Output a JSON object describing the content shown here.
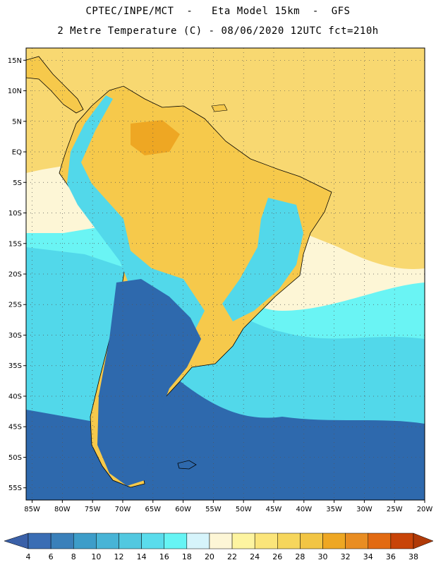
{
  "header": {
    "line1": "CPTEC/INPE/MCT  -   Eta Model 15km  -  GFS",
    "line2": "2 Metre Temperature (C) - 08/06/2020 12UTC fct=210h"
  },
  "map": {
    "lat_labels": [
      "15N",
      "10N",
      "5N",
      "EQ",
      "5S",
      "10S",
      "15S",
      "20S",
      "25S",
      "30S",
      "35S",
      "40S",
      "45S",
      "50S",
      "55S"
    ],
    "lon_labels": [
      "85W",
      "80W",
      "75W",
      "70W",
      "65W",
      "60W",
      "55W",
      "50W",
      "45W",
      "40W",
      "35W",
      "30W",
      "25W",
      "20W"
    ],
    "lon_range": [
      -86,
      -20
    ],
    "lat_range": [
      17,
      -57
    ],
    "gridlines": "dotted",
    "colors": {
      "ocean_south": "#2e69ad",
      "ocean_mid": "#52d8ea",
      "ocean_sub": "#6af4f4",
      "ocean_warm": "#fdf6d6",
      "ocean_trop": "#f8d871",
      "land_warm": "#f6c94b",
      "land_hot": "#eea723",
      "land_cool": "#52d8ea",
      "land_cold": "#2e69ad",
      "coast": "#000000"
    }
  },
  "colorbar": {
    "ticks": [
      "4",
      "6",
      "8",
      "10",
      "12",
      "14",
      "16",
      "18",
      "20",
      "22",
      "24",
      "26",
      "28",
      "30",
      "32",
      "34",
      "36",
      "38"
    ],
    "colors": [
      "#3a6db4",
      "#3a80ba",
      "#3d9dc9",
      "#48b4d6",
      "#52c8e0",
      "#5adcec",
      "#66f4f4",
      "#d6f4fb",
      "#fdf6d6",
      "#fdf4a0",
      "#fbe57a",
      "#f6d65c",
      "#f2c544",
      "#eea723",
      "#e98d22",
      "#e26a12",
      "#c84408"
    ],
    "low_arrow_color": "#3a60a8",
    "high_arrow_color": "#b03a08"
  }
}
